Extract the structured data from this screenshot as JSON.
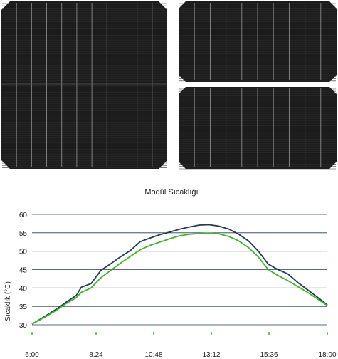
{
  "image": {
    "top_left": "dark-solar-cell",
    "top_right": "dark-solar-cell-split-halves",
    "cell_color": "#1c1c1c",
    "busbar_color": "#8a8a8a"
  },
  "chart_data": {
    "type": "line",
    "title": "Modül Sıcaklığı",
    "xlabel": "",
    "ylabel": "Sıcaklık (°C)",
    "x_ticks": [
      "6:00",
      "8.24",
      "10:48",
      "13:12",
      "15:36",
      "18:00"
    ],
    "y_ticks": [
      "30",
      "35",
      "40",
      "45",
      "50",
      "55",
      "60"
    ],
    "ylim": [
      30,
      60
    ],
    "xlim": [
      "6:00",
      "18:00"
    ],
    "grid": "horizontal",
    "legend": "none",
    "series": [
      {
        "color": "#1f3b57",
        "x": [
          "6:00",
          "6:30",
          "7:00",
          "7:24",
          "7:48",
          "8:00",
          "8:24",
          "8:48",
          "9:12",
          "9:36",
          "10:00",
          "10:24",
          "10:48",
          "11:12",
          "11:36",
          "12:00",
          "12:24",
          "12:48",
          "13:12",
          "13:36",
          "14:00",
          "14:24",
          "14:48",
          "15:12",
          "15:36",
          "16:00",
          "16:24",
          "16:48",
          "17:12",
          "17:36",
          "18:00"
        ],
        "values": [
          30.2,
          32.2,
          34.3,
          36.2,
          38.0,
          40.2,
          41.2,
          44.8,
          46.6,
          48.5,
          50.2,
          52.6,
          53.6,
          54.5,
          55.2,
          56.0,
          56.6,
          57.1,
          57.2,
          56.8,
          56.0,
          54.6,
          52.8,
          50.0,
          46.5,
          45.0,
          43.8,
          41.5,
          39.5,
          37.5,
          35.4
        ]
      },
      {
        "color": "#3cb81e",
        "x": [
          "6:00",
          "6:30",
          "7:00",
          "7:24",
          "7:48",
          "8:00",
          "8:24",
          "8:48",
          "9:12",
          "9:36",
          "10:00",
          "10:24",
          "10:48",
          "11:12",
          "11:36",
          "12:00",
          "12:24",
          "12:48",
          "13:12",
          "13:36",
          "14:00",
          "14:24",
          "14:48",
          "15:12",
          "15:36",
          "16:00",
          "16:24",
          "16:48",
          "17:12",
          "17:36",
          "18:00"
        ],
        "values": [
          30.2,
          32.0,
          34.0,
          35.8,
          37.4,
          38.8,
          40.0,
          42.8,
          44.8,
          46.8,
          48.6,
          50.4,
          51.6,
          52.5,
          53.4,
          54.2,
          54.6,
          54.8,
          54.9,
          54.7,
          54.0,
          52.8,
          51.0,
          48.4,
          45.0,
          43.4,
          42.0,
          40.4,
          38.8,
          37.0,
          35.2
        ]
      }
    ]
  }
}
